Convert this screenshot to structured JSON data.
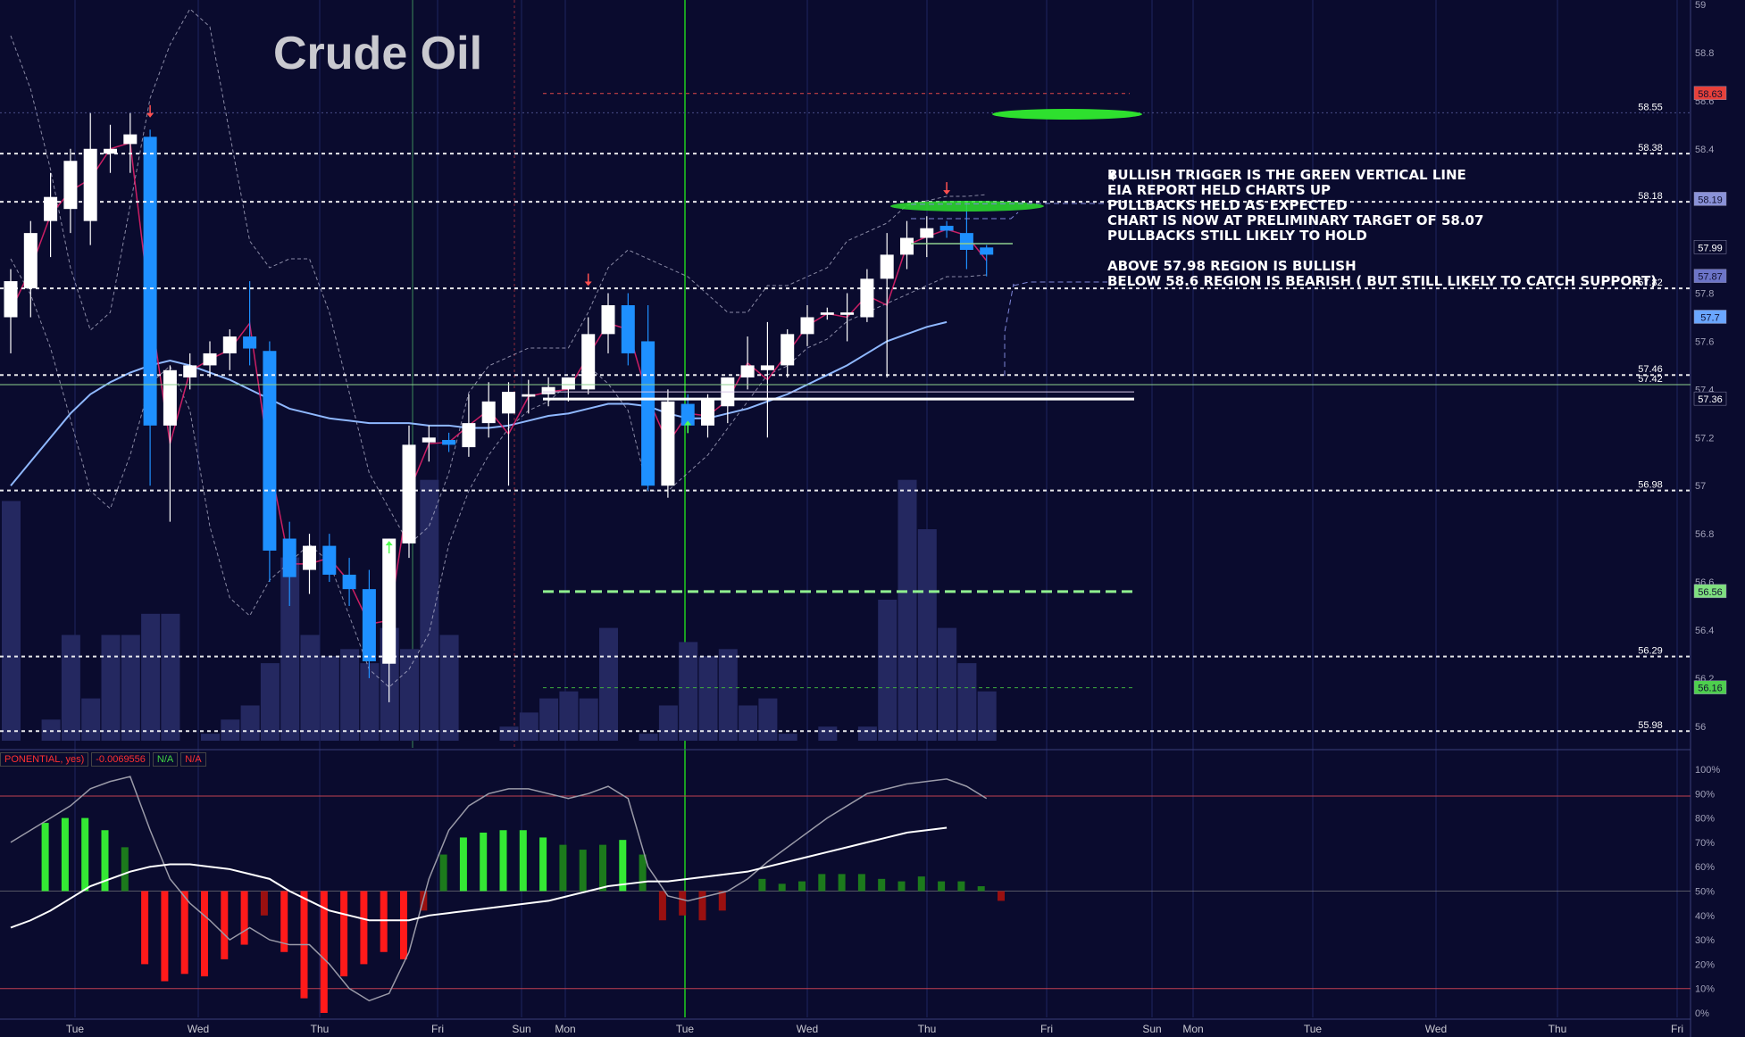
{
  "title": "Crude Oil",
  "notes": [
    "BULLISH TRIGGER IS THE GREEN VERTICAL LINE",
    "EIA REPORT HELD CHARTS UP",
    "PULLBACKS HELD AS EXPECTED",
    "CHART IS NOW AT PRELIMINARY TARGET OF 58.07",
    "PULLBACKS STILL LIKELY TO HOLD",
    "",
    "ABOVE 57.98 REGION IS BULLISH",
    "BELOW 58.6 REGION IS BEARISH ( BUT STILL LIKELY TO CATCH SUPPORT)"
  ],
  "indicator_legend": [
    "PONENTIAL, yes)",
    "-0.0069556",
    "N/A",
    "N/A"
  ],
  "colors": {
    "background": "#0a0b2e",
    "up_candle": "#ffffff",
    "down_candle": "#1e90ff",
    "volume": "#242860",
    "ma": "#8fb8ff",
    "pink": "#e0206a",
    "green": "#43e043",
    "red": "#ff2a2a"
  },
  "chart_data": [
    {
      "type": "candlestick",
      "title": "Crude Oil",
      "ylim": [
        55.94,
        59.0
      ],
      "x_ticks": [
        "Tue",
        "Wed",
        "Thu",
        "Fri",
        "Sun",
        "Mon",
        "Tue",
        "Wed",
        "Thu",
        "Fri",
        "Sun",
        "Mon",
        "Tue",
        "Wed",
        "Thu",
        "Fri"
      ],
      "y_ticks": [
        "59",
        "58.8",
        "58.6",
        "58.4",
        "58.2",
        "58",
        "57.8",
        "57.6",
        "57.4",
        "57.2",
        "57",
        "56.8",
        "56.6",
        "56.4",
        "56.2",
        "56"
      ],
      "candles": [
        {
          "o": 57.7,
          "h": 57.9,
          "l": 57.55,
          "c": 57.85
        },
        {
          "o": 57.82,
          "h": 58.1,
          "l": 57.7,
          "c": 58.05
        },
        {
          "o": 58.1,
          "h": 58.3,
          "l": 57.95,
          "c": 58.2
        },
        {
          "o": 58.15,
          "h": 58.4,
          "l": 58.05,
          "c": 58.35
        },
        {
          "o": 58.1,
          "h": 58.55,
          "l": 58.0,
          "c": 58.4
        },
        {
          "o": 58.38,
          "h": 58.5,
          "l": 58.3,
          "c": 58.4
        },
        {
          "o": 58.42,
          "h": 58.55,
          "l": 58.3,
          "c": 58.46
        },
        {
          "o": 58.45,
          "h": 58.48,
          "l": 57.0,
          "c": 57.25
        },
        {
          "o": 57.25,
          "h": 57.5,
          "l": 56.85,
          "c": 57.48
        },
        {
          "o": 57.45,
          "h": 57.55,
          "l": 57.4,
          "c": 57.5
        },
        {
          "o": 57.5,
          "h": 57.6,
          "l": 57.45,
          "c": 57.55
        },
        {
          "o": 57.55,
          "h": 57.65,
          "l": 57.48,
          "c": 57.62
        },
        {
          "o": 57.62,
          "h": 57.85,
          "l": 57.5,
          "c": 57.57
        },
        {
          "o": 57.56,
          "h": 57.6,
          "l": 56.6,
          "c": 56.73
        },
        {
          "o": 56.78,
          "h": 56.85,
          "l": 56.5,
          "c": 56.62
        },
        {
          "o": 56.65,
          "h": 56.8,
          "l": 56.55,
          "c": 56.75
        },
        {
          "o": 56.75,
          "h": 56.8,
          "l": 56.6,
          "c": 56.63
        },
        {
          "o": 56.63,
          "h": 56.7,
          "l": 56.5,
          "c": 56.57
        },
        {
          "o": 56.57,
          "h": 56.65,
          "l": 56.2,
          "c": 56.27
        },
        {
          "o": 56.26,
          "h": 56.78,
          "l": 56.1,
          "c": 56.78
        },
        {
          "o": 56.76,
          "h": 57.25,
          "l": 56.7,
          "c": 57.17
        },
        {
          "o": 57.18,
          "h": 57.25,
          "l": 57.1,
          "c": 57.2
        },
        {
          "o": 57.19,
          "h": 57.22,
          "l": 57.14,
          "c": 57.17
        },
        {
          "o": 57.16,
          "h": 57.38,
          "l": 57.12,
          "c": 57.26
        },
        {
          "o": 57.26,
          "h": 57.43,
          "l": 57.2,
          "c": 57.35
        },
        {
          "o": 57.3,
          "h": 57.43,
          "l": 57.0,
          "c": 57.39
        },
        {
          "o": 57.37,
          "h": 57.44,
          "l": 57.3,
          "c": 57.38
        },
        {
          "o": 57.38,
          "h": 57.45,
          "l": 57.33,
          "c": 57.41
        },
        {
          "o": 57.4,
          "h": 57.45,
          "l": 57.35,
          "c": 57.45
        },
        {
          "o": 57.4,
          "h": 57.7,
          "l": 57.38,
          "c": 57.63
        },
        {
          "o": 57.63,
          "h": 57.8,
          "l": 57.55,
          "c": 57.75
        },
        {
          "o": 57.75,
          "h": 57.8,
          "l": 57.5,
          "c": 57.55
        },
        {
          "o": 57.6,
          "h": 57.75,
          "l": 56.98,
          "c": 57.0
        },
        {
          "o": 57.0,
          "h": 57.4,
          "l": 56.95,
          "c": 57.35
        },
        {
          "o": 57.34,
          "h": 57.38,
          "l": 57.22,
          "c": 57.25
        },
        {
          "o": 57.25,
          "h": 57.38,
          "l": 57.2,
          "c": 57.36
        },
        {
          "o": 57.33,
          "h": 57.45,
          "l": 57.26,
          "c": 57.45
        },
        {
          "o": 57.45,
          "h": 57.62,
          "l": 57.4,
          "c": 57.5
        },
        {
          "o": 57.48,
          "h": 57.68,
          "l": 57.2,
          "c": 57.5
        },
        {
          "o": 57.5,
          "h": 57.65,
          "l": 57.45,
          "c": 57.63
        },
        {
          "o": 57.63,
          "h": 57.75,
          "l": 57.58,
          "c": 57.7
        },
        {
          "o": 57.71,
          "h": 57.74,
          "l": 57.69,
          "c": 57.72
        },
        {
          "o": 57.71,
          "h": 57.8,
          "l": 57.6,
          "c": 57.72
        },
        {
          "o": 57.7,
          "h": 57.9,
          "l": 57.68,
          "c": 57.86
        },
        {
          "o": 57.86,
          "h": 58.05,
          "l": 57.45,
          "c": 57.96
        },
        {
          "o": 57.96,
          "h": 58.1,
          "l": 57.9,
          "c": 58.03
        },
        {
          "o": 58.03,
          "h": 58.12,
          "l": 57.95,
          "c": 58.07
        },
        {
          "o": 58.08,
          "h": 58.1,
          "l": 58.03,
          "c": 58.06
        },
        {
          "o": 58.05,
          "h": 58.18,
          "l": 57.9,
          "c": 57.98
        },
        {
          "o": 57.99,
          "h": 58.0,
          "l": 57.87,
          "c": 57.96
        }
      ],
      "volume": [
        0.34,
        0.0,
        0.03,
        0.15,
        0.06,
        0.15,
        0.15,
        0.18,
        0.18,
        0.0,
        0.01,
        0.03,
        0.05,
        0.11,
        0.26,
        0.15,
        0.12,
        0.13,
        0.11,
        0.16,
        0.13,
        0.37,
        0.15,
        0.0,
        0.0,
        0.02,
        0.04,
        0.06,
        0.07,
        0.06,
        0.16,
        0.0,
        0.01,
        0.05,
        0.14,
        0.12,
        0.13,
        0.05,
        0.06,
        0.01,
        0.0,
        0.02,
        0.0,
        0.02,
        0.2,
        0.37,
        0.3,
        0.16,
        0.11,
        0.07
      ],
      "ma": [
        57.0,
        57.1,
        57.2,
        57.3,
        57.38,
        57.43,
        57.47,
        57.5,
        57.52,
        57.5,
        57.47,
        57.44,
        57.4,
        57.36,
        57.32,
        57.3,
        57.28,
        57.27,
        57.26,
        57.26,
        57.26,
        57.25,
        57.25,
        57.24,
        57.24,
        57.25,
        57.27,
        57.29,
        57.3,
        57.32,
        57.34,
        57.34,
        57.33,
        57.3,
        57.28,
        57.28,
        57.3,
        57.32,
        57.35,
        57.38,
        57.42,
        57.46,
        57.5,
        57.55,
        57.6,
        57.63,
        57.66,
        57.68
      ],
      "price_labels": [
        {
          "text": "58.63",
          "price": 58.63,
          "bg": "#e8403a"
        },
        {
          "text": "58.19",
          "price": 58.19,
          "bg": "#8a92d8"
        },
        {
          "text": "57.99",
          "price": 57.99,
          "bg": "#0a0b2e"
        },
        {
          "text": "57.87",
          "price": 57.87,
          "bg": "#6c74c8"
        },
        {
          "text": "57.7",
          "price": 57.7,
          "bg": "#6aa6ff"
        },
        {
          "text": "57.36",
          "price": 57.36,
          "bg": "#0a0b2e"
        },
        {
          "text": "56.56",
          "price": 56.56,
          "bg": "#7fe07f"
        },
        {
          "text": "56.16",
          "price": 56.16,
          "bg": "#4ecf4e"
        }
      ],
      "levels": [
        "58.55",
        "58.38",
        "58.18",
        "57.82",
        "57.46",
        "57.42",
        "56.98",
        "56.29",
        "55.98"
      ]
    },
    {
      "type": "bar",
      "ylim": [
        0,
        100
      ],
      "y_ticks": [
        "100%",
        "90%",
        "80%",
        "70%",
        "60%",
        "50%",
        "40%",
        "30%",
        "20%",
        "10%",
        "0%"
      ],
      "histogram": [
        0,
        0,
        28,
        30,
        30,
        25,
        18,
        -30,
        -37,
        -34,
        -35,
        -28,
        -22,
        -10,
        -25,
        -44,
        -50,
        -35,
        -30,
        -25,
        -28,
        -8,
        15,
        22,
        24,
        25,
        25,
        22,
        19,
        17,
        19,
        21,
        15,
        -12,
        -10,
        -12,
        -8,
        0,
        5,
        3,
        4,
        7,
        7,
        7,
        5,
        4,
        6,
        4,
        4,
        2,
        -4
      ],
      "oscillator": [
        70,
        75,
        80,
        85,
        92,
        95,
        97,
        75,
        55,
        45,
        38,
        30,
        35,
        30,
        28,
        28,
        20,
        10,
        5,
        8,
        25,
        55,
        75,
        85,
        90,
        92,
        92,
        90,
        88,
        90,
        93,
        88,
        60,
        48,
        46,
        48,
        50,
        55,
        62,
        68,
        74,
        80,
        85,
        90,
        92,
        94,
        95,
        96,
        93,
        88
      ],
      "signal": [
        35,
        38,
        42,
        47,
        52,
        55,
        58,
        60,
        61,
        61,
        60,
        59,
        57,
        55,
        50,
        46,
        42,
        40,
        38,
        38,
        38,
        40,
        41,
        42,
        43,
        44,
        45,
        46,
        48,
        50,
        52,
        53,
        54,
        54,
        55,
        56,
        57,
        58,
        60,
        62,
        64,
        66,
        68,
        70,
        72,
        74,
        75,
        76
      ]
    }
  ]
}
